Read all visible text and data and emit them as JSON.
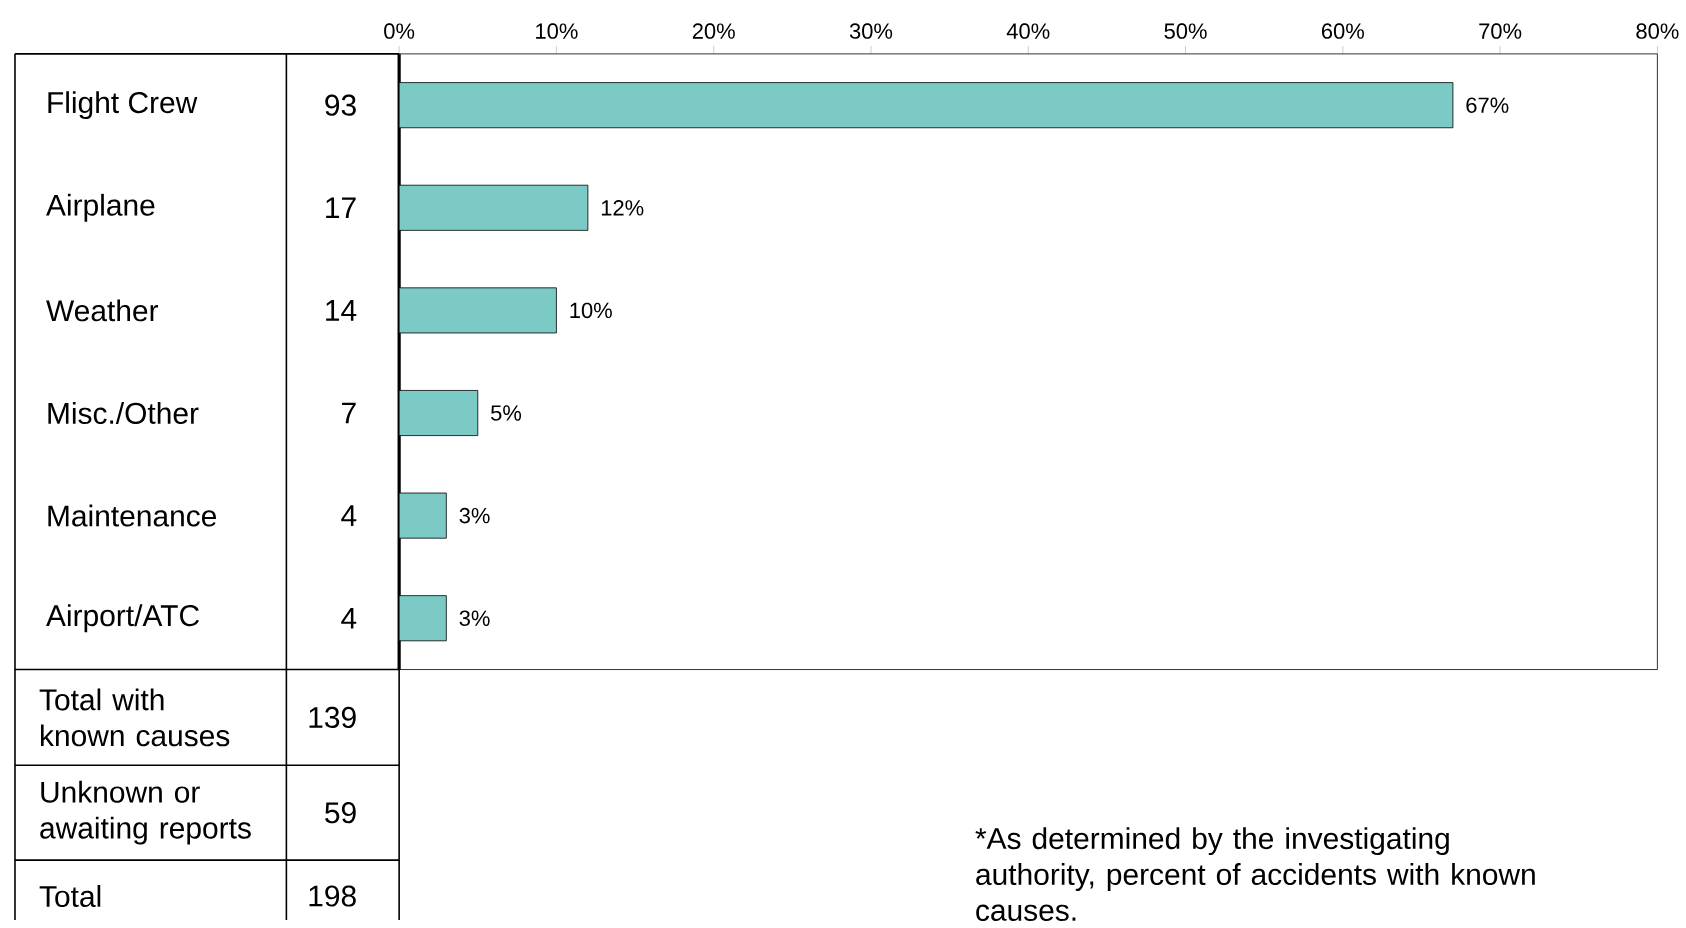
{
  "chart_data": {
    "type": "bar",
    "orientation": "horizontal",
    "categories": [
      "Flight Crew",
      "Airplane",
      "Weather",
      "Misc./Other",
      "Maintenance",
      "Airport/ATC"
    ],
    "values": [
      67,
      12,
      10,
      5,
      3,
      3
    ],
    "value_labels": [
      "67%",
      "12%",
      "10%",
      "5%",
      "3%",
      "3%"
    ],
    "color": "#7ccac6",
    "xlim": [
      0,
      80
    ],
    "xticks": [
      {
        "value": 0,
        "label": "0%"
      },
      {
        "value": 10,
        "label": "10%"
      },
      {
        "value": 20,
        "label": "20%"
      },
      {
        "value": 30,
        "label": "30%"
      },
      {
        "value": 40,
        "label": "40%"
      },
      {
        "value": 50,
        "label": "50%"
      },
      {
        "value": 60,
        "label": "60%"
      },
      {
        "value": 70,
        "label": "70%"
      },
      {
        "value": 80,
        "label": "80%"
      }
    ],
    "annotations": [
      "93",
      "17",
      "14",
      "7",
      "4",
      "4",
      "Total with known causes",
      "139",
      "Unknown or awaiting reports",
      "59",
      "Total",
      "198",
      "*As determined by the investigating authority, percent of accidents with known causes."
    ]
  }
}
